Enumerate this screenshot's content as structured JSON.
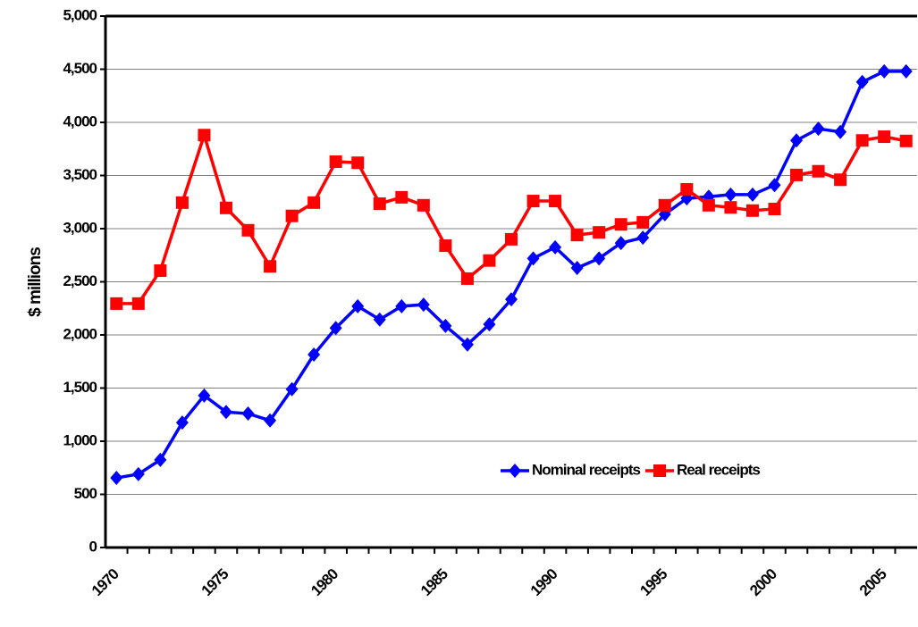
{
  "chart_data": {
    "type": "line",
    "y_label": "$ millions",
    "categories": [
      "1970",
      null,
      null,
      null,
      null,
      "1975",
      null,
      null,
      null,
      null,
      "1980",
      null,
      null,
      null,
      null,
      "1985",
      null,
      null,
      null,
      null,
      "1990",
      null,
      null,
      null,
      null,
      "1995",
      null,
      null,
      null,
      null,
      "2000",
      null,
      null,
      null,
      null,
      "2005",
      null
    ],
    "series": [
      {
        "name": "Nominal receipts",
        "color": "#0000ff",
        "marker": "diamond",
        "values": [
          655,
          690,
          825,
          1175,
          1430,
          1275,
          1260,
          1195,
          1490,
          1815,
          2065,
          2270,
          2145,
          2270,
          2285,
          2085,
          1910,
          2100,
          2335,
          2720,
          2825,
          2630,
          2720,
          2865,
          2915,
          3135,
          3285,
          3300,
          3320,
          3320,
          3410,
          3830,
          3940,
          3910,
          4380,
          4480,
          4480
        ]
      },
      {
        "name": "Real receipts",
        "color": "#ff0000",
        "marker": "square",
        "values": [
          2295,
          2295,
          2605,
          3245,
          3880,
          3195,
          2985,
          2645,
          3120,
          3245,
          3630,
          3620,
          3235,
          3295,
          3220,
          2840,
          2530,
          2700,
          2900,
          3260,
          3260,
          2940,
          2965,
          3040,
          3060,
          3220,
          3370,
          3220,
          3200,
          3170,
          3185,
          3505,
          3540,
          3460,
          3830,
          3865,
          3825
        ]
      }
    ],
    "ylim": [
      0,
      5000
    ],
    "yticks": [
      0,
      500,
      {
        "value": 1000,
        "label": "1,000"
      },
      {
        "value": 1500,
        "label": "1,500"
      },
      {
        "value": 2000,
        "label": "2,000"
      },
      {
        "value": 2500,
        "label": "2,500"
      },
      {
        "value": 3000,
        "label": "3,000"
      },
      {
        "value": 3500,
        "label": "3,500"
      },
      {
        "value": 4000,
        "label": "4,000"
      },
      {
        "value": 4500,
        "label": "4,500"
      },
      {
        "value": 5000,
        "label": "5,000"
      }
    ],
    "grid": true,
    "legend": "lower right"
  }
}
